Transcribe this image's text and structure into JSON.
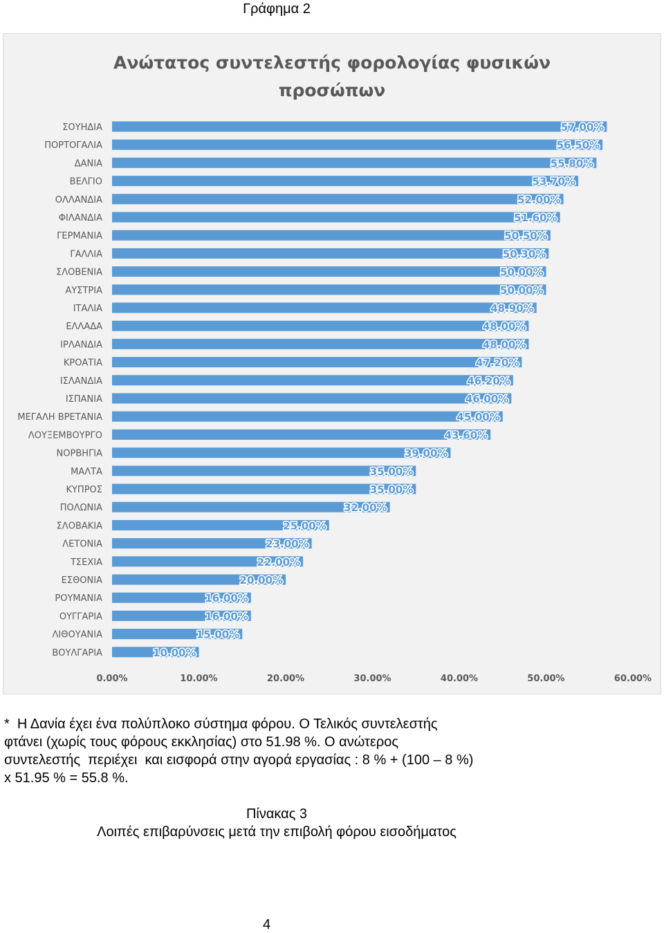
{
  "page_caption": "Γράφημα 2",
  "note_lines": [
    "*  Η Δανία έχει ένα πολύπλοκο σύστημα φόρου. Ο Τελικός συντελεστής",
    "φτάνει (χωρίς τους φόρους εκκλησίας) στο 51.98 %. Ο ανώτερος",
    "συντελεστής  περιέχει  και εισφορά στην αγορά εργασίας : 8 % + (100 – 8 %)",
    "x 51.95 % = 55.8 %."
  ],
  "table_caption": {
    "label": "Πίνακας 3",
    "title": "Λοιπές επιβαρύνσεις μετά την επιβολή φόρου εισοδήματος"
  },
  "page_number": "4",
  "colors": {
    "bar": "#5b9bd5",
    "label_bg": "#ffffff",
    "label_text": "#ffffff",
    "axis_text": "#595959",
    "frame_bg": "#f2f2f2",
    "title_text": "#595959"
  },
  "chart_data": {
    "type": "bar",
    "orientation": "horizontal",
    "title": "Ανώτατος συντελεστής φορολογίας φυσικών\nπροσώπων",
    "xlabel": "",
    "ylabel": "",
    "xlim": [
      0,
      60
    ],
    "x_ticks": [
      "0.00%",
      "10.00%",
      "20.00%",
      "30.00%",
      "40.00%",
      "50.00%",
      "60.00%"
    ],
    "x_tick_values": [
      0,
      10,
      20,
      30,
      40,
      50,
      60
    ],
    "grid": false,
    "legend": "none",
    "categories": [
      "ΣΟΥΗΔΙΑ",
      "ΠΟΡΤΟΓΑΛΙΑ",
      "ΔΑΝΙΑ",
      "ΒΕΛΓΙΟ",
      "ΟΛΛΑΝΔΙΑ",
      "ΦΙΛΑΝΔΙΑ",
      "ΓΕΡΜΑΝΙΑ",
      "ΓΑΛΛΙΑ",
      "ΣΛΟΒΕΝΙΑ",
      "ΑΥΣΤΡΙΑ",
      "ΙΤΑΛΙΑ",
      "ΕΛΛΑΔΑ",
      "ΙΡΛΑΝΔΙΑ",
      "ΚΡΟΑΤΙΑ",
      "ΙΣΛΑΝΔΙΑ",
      "ΙΣΠΑΝΙΑ",
      "ΜΕΓΑΛΗ ΒΡΕΤΑΝΙΑ",
      "ΛΟΥΞΕΜΒΟΥΡΓΟ",
      "ΝΟΡΒΗΓΙΑ",
      "ΜΑΛΤΑ",
      "ΚΥΠΡΟΣ",
      "ΠΟΛΩΝΙΑ",
      "ΣΛΟΒΑΚΙΑ",
      "ΛΕΤΟΝΙΑ",
      "ΤΣΕΧΙΑ",
      "ΕΣΘΟΝΙΑ",
      "ΡΟΥΜΑΝΙΑ",
      "ΟΥΓΓΑΡΙΑ",
      "ΛΙΘΟΥΑΝΙΑ",
      "ΒΟΥΛΓΑΡΙΑ"
    ],
    "values": [
      57.0,
      56.5,
      55.8,
      53.7,
      52.0,
      51.6,
      50.5,
      50.3,
      50.0,
      50.0,
      48.9,
      48.0,
      48.0,
      47.2,
      46.2,
      46.0,
      45.0,
      43.6,
      39.0,
      35.0,
      35.0,
      32.0,
      25.0,
      23.0,
      22.0,
      20.0,
      16.0,
      16.0,
      15.0,
      10.0
    ],
    "data_labels": [
      "57.00%",
      "56.50%",
      "55.80%",
      "53.70%",
      "52.00%",
      "51.60%",
      "50.50%",
      "50.30%",
      "50.00%",
      "50.00%",
      "48.90%",
      "48.00%",
      "48.00%",
      "47.20%",
      "46.20%",
      "46.00%",
      "45.00%",
      "43.60%",
      "39.00%",
      "35.00%",
      "35.00%",
      "32.00%",
      "25.00%",
      "23.00%",
      "22.00%",
      "20.00%",
      "16.00%",
      "16.00%",
      "15.00%",
      "10.00%"
    ]
  }
}
